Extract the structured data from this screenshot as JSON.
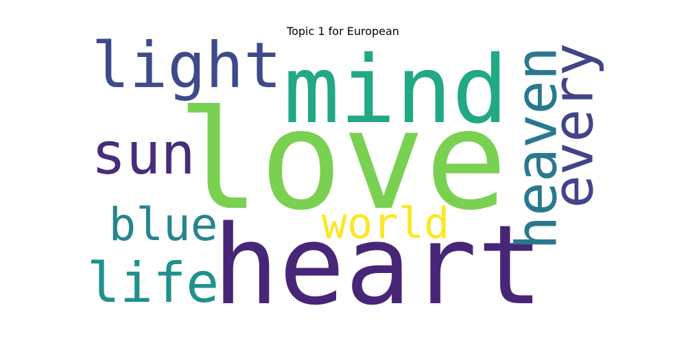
{
  "chart_data": {
    "type": "wordcloud",
    "title": "Topic 1 for European",
    "words": [
      {
        "text": "love",
        "color": "#7ad151",
        "rotated": false
      },
      {
        "text": "heart",
        "color": "#482677",
        "rotated": false
      },
      {
        "text": "mind",
        "color": "#22a884",
        "rotated": false
      },
      {
        "text": "light",
        "color": "#3e4a89",
        "rotated": false
      },
      {
        "text": "sun",
        "color": "#472d7b",
        "rotated": false
      },
      {
        "text": "heaven",
        "color": "#2a788e",
        "rotated": true
      },
      {
        "text": "every",
        "color": "#414487",
        "rotated": true
      },
      {
        "text": "world",
        "color": "#fde725",
        "rotated": false
      },
      {
        "text": "blue",
        "color": "#25858e",
        "rotated": false
      },
      {
        "text": "life",
        "color": "#21918c",
        "rotated": false
      }
    ]
  }
}
